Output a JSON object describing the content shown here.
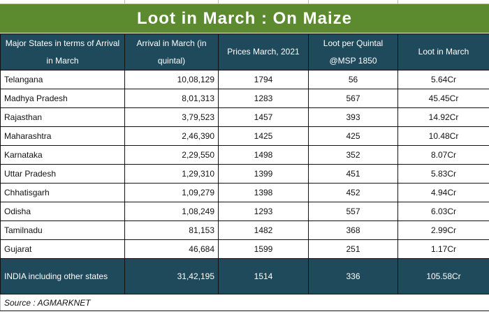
{
  "title": "Loot in March : On Maize",
  "colors": {
    "title_bg": "#5b8a2f",
    "header_bg": "#1f4a5c"
  },
  "columns": [
    "Major States in terms of Arrival in March",
    "Arrival in March (in quintal)",
    "Prices March, 2021",
    "Loot per Quintal @MSP 1850",
    "Loot in March"
  ],
  "rows": [
    [
      "Telangana",
      "10,08,129",
      "1794",
      "56",
      "5.64Cr"
    ],
    [
      "Madhya Pradesh",
      "8,01,313",
      "1283",
      "567",
      "45.45Cr"
    ],
    [
      "Rajasthan",
      "3,79,523",
      "1457",
      "393",
      "14.92Cr"
    ],
    [
      "Maharashtra",
      "2,46,390",
      "1425",
      "425",
      "10.48Cr"
    ],
    [
      "Karnataka",
      "2,29,550",
      "1498",
      "352",
      "8.07Cr"
    ],
    [
      "Uttar Pradesh",
      "1,29,310",
      "1399",
      "451",
      "5.83Cr"
    ],
    [
      "Chhatisgarh",
      "1,09,279",
      "1398",
      "452",
      "4.94Cr"
    ],
    [
      "Odisha",
      "1,08,249",
      "1293",
      "557",
      "6.03Cr"
    ],
    [
      "Tamilnadu",
      "81,153",
      "1482",
      "368",
      "2.99Cr"
    ],
    [
      "Gujarat",
      "46,684",
      "1599",
      "251",
      "1.17Cr"
    ]
  ],
  "total": [
    "INDIA including other states",
    "31,42,195",
    "1514",
    "336",
    "105.58Cr"
  ],
  "source": "Source : AGMARKNET"
}
